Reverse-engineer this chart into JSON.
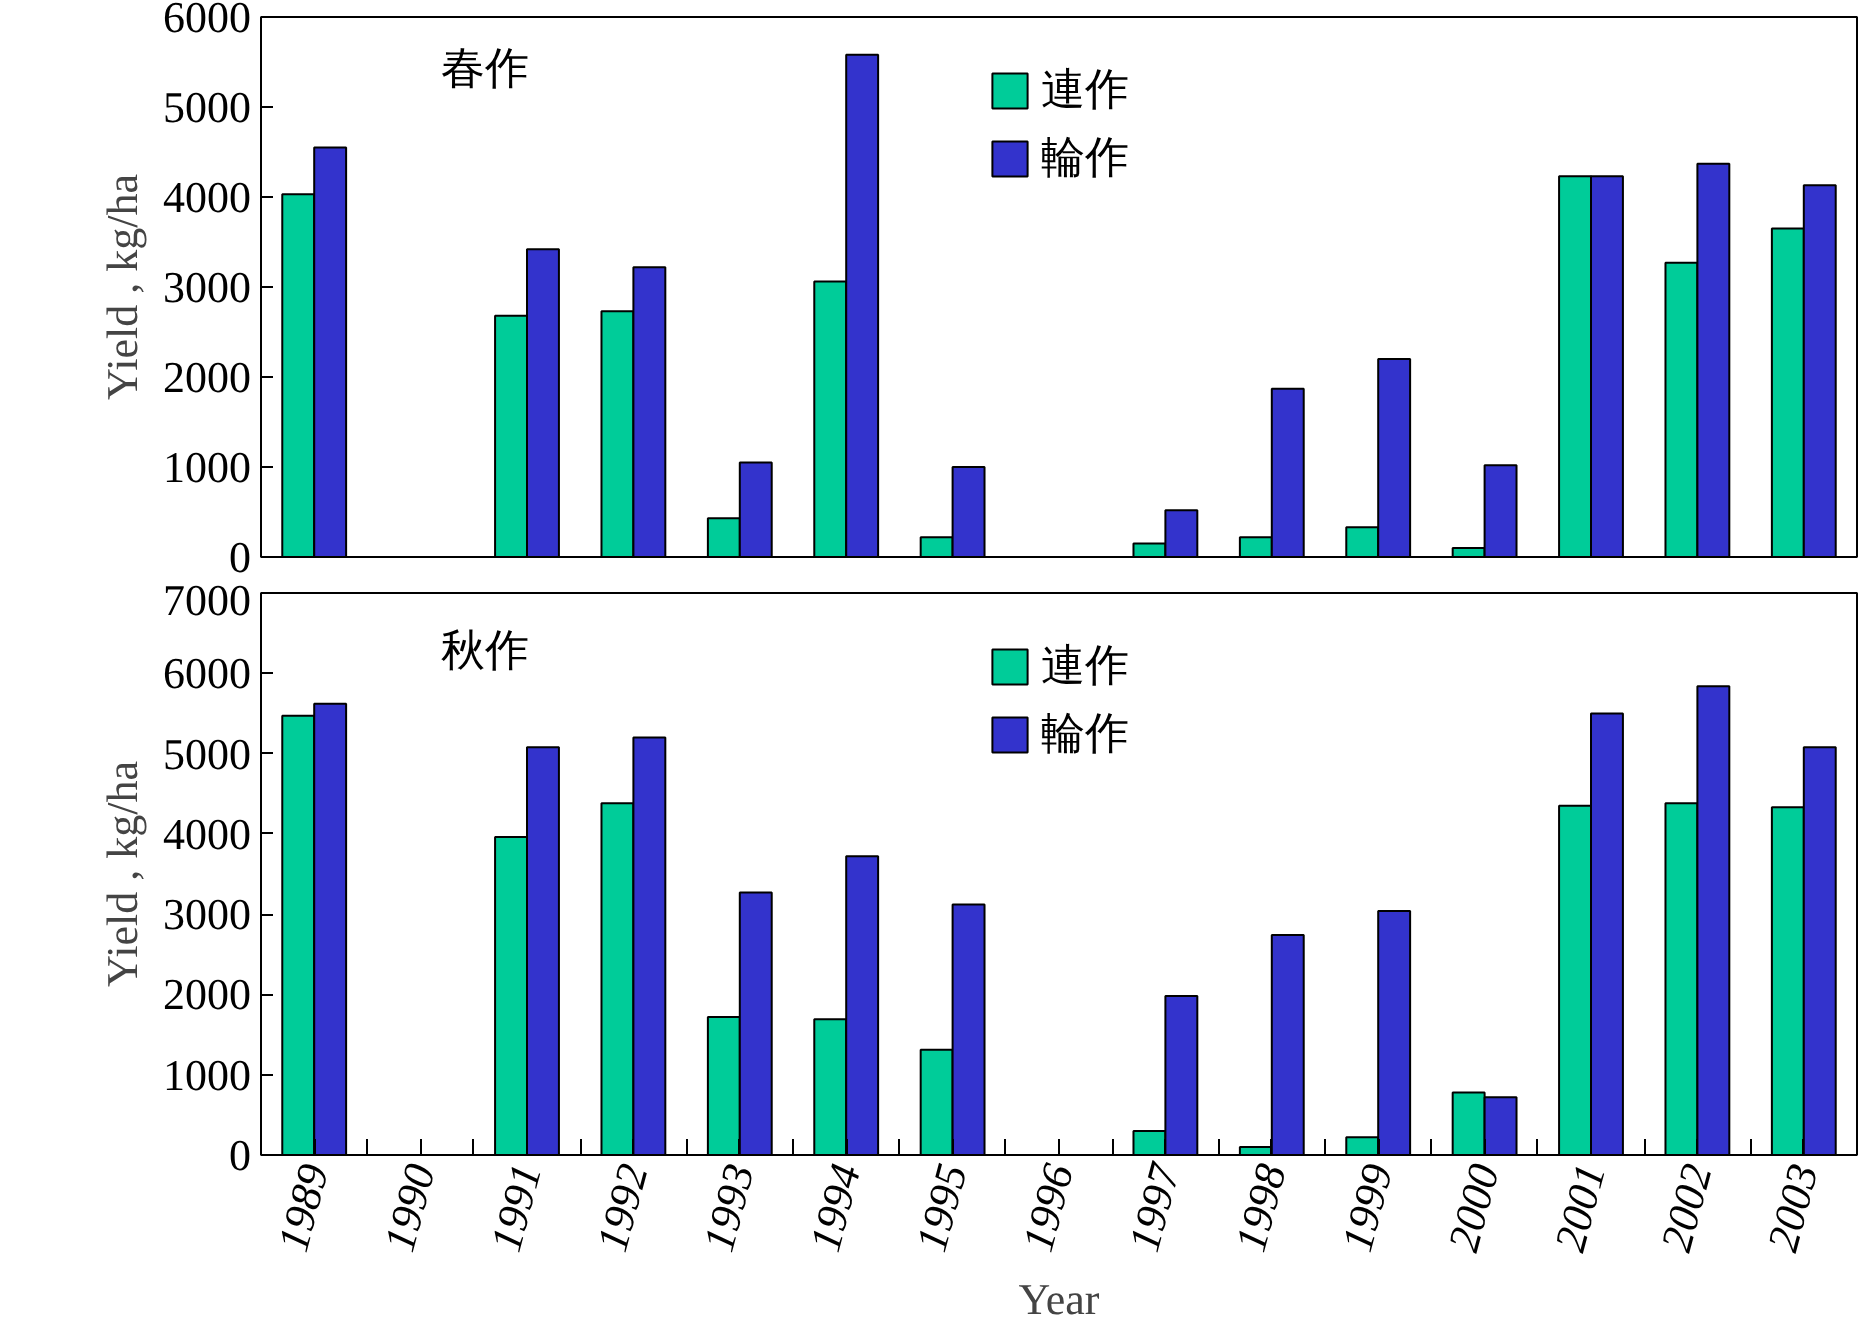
{
  "chart_data": [
    {
      "type": "bar",
      "categories": [
        "1989",
        "1990",
        "1991",
        "1992",
        "1993",
        "1994",
        "1995",
        "1996",
        "1997",
        "1998",
        "1999",
        "2000",
        "2001",
        "2002",
        "2003"
      ],
      "ylabel": "Yield , kg/ha",
      "ylim": [
        0,
        6000
      ],
      "yticks": [
        0,
        1000,
        2000,
        3000,
        4000,
        5000,
        6000
      ],
      "tick_labels": "y",
      "legend": "top",
      "grid": false,
      "annotations": [
        "春作"
      ],
      "series": [
        {
          "name": "連作",
          "color": "#00cc99",
          "values": [
            4030,
            null,
            2680,
            2730,
            430,
            3060,
            220,
            null,
            150,
            220,
            330,
            100,
            4230,
            3270,
            3650
          ]
        },
        {
          "name": "輪作",
          "color": "#3333cc",
          "values": [
            4550,
            null,
            3420,
            3220,
            1050,
            5580,
            1000,
            null,
            520,
            1870,
            2200,
            1020,
            4230,
            4370,
            4130
          ]
        }
      ]
    },
    {
      "type": "bar",
      "categories": [
        "1989",
        "1990",
        "1991",
        "1992",
        "1993",
        "1994",
        "1995",
        "1996",
        "1997",
        "1998",
        "1999",
        "2000",
        "2001",
        "2002",
        "2003"
      ],
      "xlabel": "Year",
      "ylabel": "Yield , kg/ha",
      "ylim": [
        0,
        7000
      ],
      "yticks": [
        0,
        1000,
        2000,
        3000,
        4000,
        5000,
        6000,
        7000
      ],
      "legend": "top",
      "grid": false,
      "annotations": [
        "秋作"
      ],
      "series": [
        {
          "name": "連作",
          "color": "#00cc99",
          "values": [
            5470,
            null,
            3960,
            4380,
            1720,
            1690,
            1310,
            null,
            300,
            100,
            220,
            780,
            4350,
            4380,
            4330
          ]
        },
        {
          "name": "輪作",
          "color": "#3333cc",
          "values": [
            5620,
            null,
            5080,
            5200,
            3270,
            3720,
            3120,
            null,
            1980,
            2740,
            3040,
            720,
            5500,
            5840,
            5080
          ]
        }
      ]
    }
  ]
}
